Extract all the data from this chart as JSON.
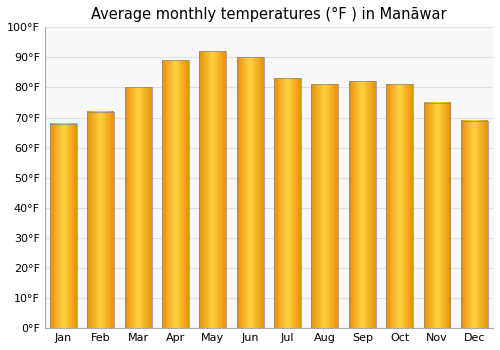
{
  "title": "Average monthly temperatures (°F ) in Manāwar",
  "months": [
    "Jan",
    "Feb",
    "Mar",
    "Apr",
    "May",
    "Jun",
    "Jul",
    "Aug",
    "Sep",
    "Oct",
    "Nov",
    "Dec"
  ],
  "values": [
    68,
    72,
    80,
    89,
    92,
    90,
    83,
    81,
    82,
    81,
    75,
    69
  ],
  "ylim": [
    0,
    100
  ],
  "yticks": [
    0,
    10,
    20,
    30,
    40,
    50,
    60,
    70,
    80,
    90,
    100
  ],
  "ytick_labels": [
    "0°F",
    "10°F",
    "20°F",
    "30°F",
    "40°F",
    "50°F",
    "60°F",
    "70°F",
    "80°F",
    "90°F",
    "100°F"
  ],
  "bg_color": "#ffffff",
  "plot_bg_color": "#f8f8f8",
  "bar_color_center": "#FFCC44",
  "bar_color_edge": "#E8920A",
  "bar_border_color": "#888888",
  "grid_color": "#e0e0e0",
  "title_fontsize": 10.5,
  "tick_fontsize": 8,
  "figsize": [
    5.0,
    3.5
  ],
  "dpi": 100
}
